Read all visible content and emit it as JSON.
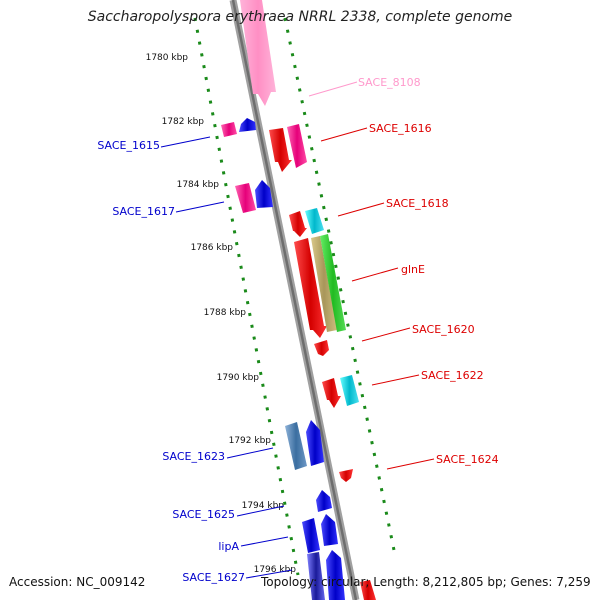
{
  "title": "Saccharopolyspora erythraea NRRL 2338, complete genome",
  "accession": "Accession: NC_009142",
  "topology": "Topology: circular; Length: 8,212,805 bp; Genes: 7,259",
  "ticks": [
    "1780 kbp",
    "1782 kbp",
    "1784 kbp",
    "1786 kbp",
    "1788 kbp",
    "1790 kbp",
    "1792 kbp",
    "1794 kbp",
    "1796 kbp"
  ],
  "genes": [
    {
      "label": "SACE_8108",
      "color": "#ff99cc",
      "strand": "forward"
    },
    {
      "label": "SACE_1615",
      "color": "#0000cc",
      "strand": "reverse"
    },
    {
      "label": "SACE_1616",
      "color": "#dd0000",
      "strand": "forward"
    },
    {
      "label": "SACE_1617",
      "color": "#0000cc",
      "strand": "reverse"
    },
    {
      "label": "SACE_1618",
      "color": "#dd0000",
      "strand": "forward"
    },
    {
      "label": "glnE",
      "color": "#dd0000",
      "strand": "forward"
    },
    {
      "label": "SACE_1620",
      "color": "#dd0000",
      "strand": "forward"
    },
    {
      "label": "SACE_1622",
      "color": "#dd0000",
      "strand": "forward"
    },
    {
      "label": "SACE_1623",
      "color": "#0000cc",
      "strand": "reverse"
    },
    {
      "label": "SACE_1624",
      "color": "#dd0000",
      "strand": "forward"
    },
    {
      "label": "SACE_1625",
      "color": "#0000cc",
      "strand": "reverse"
    },
    {
      "label": "lipA",
      "color": "#0000cc",
      "strand": "reverse"
    },
    {
      "label": "SACE_1627",
      "color": "#0000cc",
      "strand": "reverse"
    }
  ]
}
